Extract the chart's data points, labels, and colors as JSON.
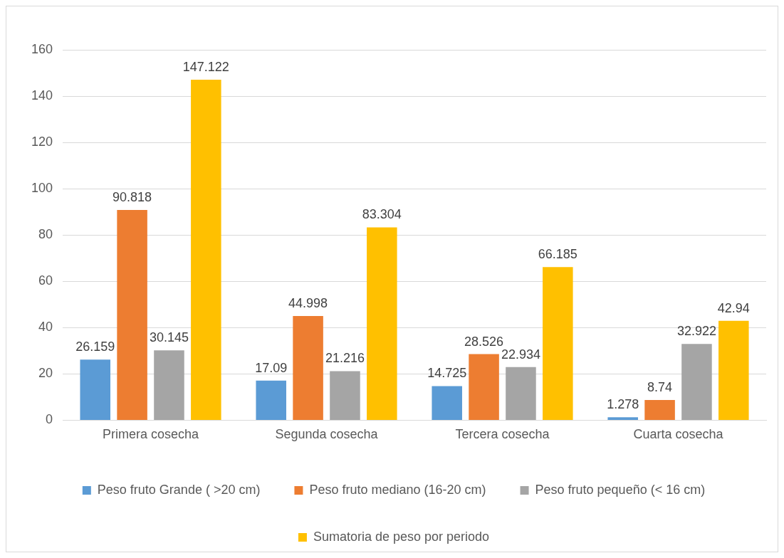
{
  "chart_data": {
    "type": "bar",
    "categories": [
      "Primera cosecha",
      "Segunda cosecha",
      "Tercera cosecha",
      "Cuarta cosecha"
    ],
    "series": [
      {
        "name": "Peso fruto Grande ( >20 cm)",
        "color": "#5b9bd5",
        "values": [
          26.159,
          17.09,
          14.725,
          1.278
        ]
      },
      {
        "name": "Peso fruto mediano (16-20 cm)",
        "color": "#ed7d31",
        "values": [
          90.818,
          44.998,
          28.526,
          8.74
        ]
      },
      {
        "name": "Peso fruto pequeño (< 16 cm)",
        "color": "#a5a5a5",
        "values": [
          30.145,
          21.216,
          22.934,
          32.922
        ]
      },
      {
        "name": "Sumatoria de peso por periodo",
        "color": "#ffc000",
        "values": [
          147.122,
          83.304,
          66.185,
          42.94
        ]
      }
    ],
    "ylim": [
      0,
      160
    ],
    "yticks": [
      0,
      20,
      40,
      60,
      80,
      100,
      120,
      140,
      160
    ],
    "grid": "y",
    "legend": "bottom",
    "data_labels": true
  }
}
